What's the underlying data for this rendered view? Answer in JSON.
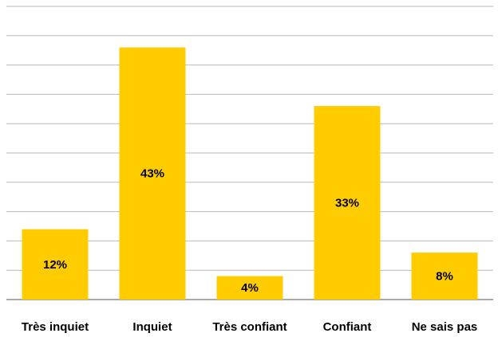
{
  "chart_data": {
    "type": "bar",
    "categories": [
      "Très inquiet",
      "Inquiet",
      "Très confiant",
      "Confiant",
      "Ne sais pas"
    ],
    "values": [
      12,
      43,
      4,
      33,
      8
    ],
    "value_labels": [
      "12%",
      "43%",
      "4%",
      "33%",
      "8%"
    ],
    "color": "#ffcc00",
    "ylim": [
      0,
      50
    ],
    "yticks": [
      0,
      5,
      10,
      15,
      20,
      25,
      30,
      35,
      40,
      45,
      50
    ],
    "grid": true
  }
}
